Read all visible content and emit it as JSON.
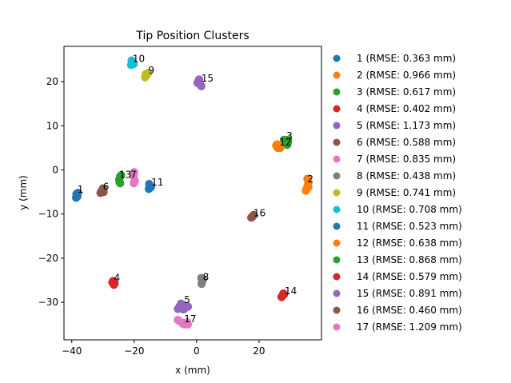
{
  "chart_data": {
    "type": "scatter",
    "title": "Tip Position Clusters",
    "xlabel": "x (mm)",
    "ylabel": "y (mm)",
    "xlim": [
      -42.5,
      40
    ],
    "ylim": [
      -38.5,
      28
    ],
    "xticks": [
      -40,
      -20,
      0,
      20
    ],
    "yticks": [
      -30,
      -20,
      -10,
      0,
      10,
      20
    ],
    "grid": false,
    "legend_position": "right",
    "series": [
      {
        "label": "1",
        "legend": "1 (RMSE: 0.363 mm)",
        "color": "#1f77b4",
        "label_at": [
          -38.2,
          -5.2
        ],
        "points": [
          [
            -38.5,
            -5.5
          ],
          [
            -38.2,
            -6.0
          ],
          [
            -38.0,
            -5.2
          ],
          [
            -38.6,
            -6.3
          ],
          [
            -38.3,
            -5.8
          ]
        ]
      },
      {
        "label": "2",
        "legend": "2 (RMSE: 0.966 mm)",
        "color": "#ff7f0e",
        "label_at": [
          35.5,
          -2.8
        ],
        "points": [
          [
            35.5,
            -2.0
          ],
          [
            35.8,
            -2.8
          ],
          [
            35.6,
            -3.5
          ],
          [
            35.3,
            -4.2
          ],
          [
            35.0,
            -4.7
          ],
          [
            35.8,
            -3.9
          ]
        ]
      },
      {
        "label": "3",
        "legend": "3 (RMSE: 0.617 mm)",
        "color": "#2ca02c",
        "label_at": [
          28.8,
          7.0
        ],
        "points": [
          [
            28.5,
            6.5
          ],
          [
            29.2,
            6.2
          ],
          [
            29.0,
            5.7
          ],
          [
            28.0,
            6.8
          ],
          [
            29.3,
            6.8
          ]
        ]
      },
      {
        "label": "4",
        "legend": "4 (RMSE: 0.402 mm)",
        "color": "#d62728",
        "label_at": [
          -26.5,
          -25.2
        ],
        "points": [
          [
            -27.0,
            -25.5
          ],
          [
            -26.5,
            -26.0
          ],
          [
            -26.8,
            -25.2
          ],
          [
            -26.3,
            -25.7
          ]
        ]
      },
      {
        "label": "5",
        "legend": "5 (RMSE: 1.173 mm)",
        "color": "#9467bd",
        "label_at": [
          -4.0,
          -30.2
        ],
        "points": [
          [
            -5.5,
            -31.0
          ],
          [
            -4.5,
            -30.5
          ],
          [
            -3.5,
            -31.2
          ],
          [
            -5.0,
            -30.3
          ],
          [
            -6.0,
            -31.5
          ],
          [
            -2.8,
            -31.0
          ],
          [
            -4.2,
            -31.6
          ]
        ]
      },
      {
        "label": "6",
        "legend": "6 (RMSE: 0.588 mm)",
        "color": "#8c564b",
        "label_at": [
          -30.0,
          -4.5
        ],
        "points": [
          [
            -30.5,
            -4.8
          ],
          [
            -30.0,
            -4.2
          ],
          [
            -30.8,
            -5.2
          ],
          [
            -29.8,
            -5.0
          ]
        ]
      },
      {
        "label": "7",
        "legend": "7 (RMSE: 0.835 mm)",
        "color": "#e377c2",
        "label_at": [
          -21.2,
          -1.8
        ],
        "points": [
          [
            -20.0,
            -0.5
          ],
          [
            -20.2,
            -1.5
          ],
          [
            -19.8,
            -2.5
          ],
          [
            -20.1,
            -3.0
          ],
          [
            -20.3,
            -1.0
          ]
        ]
      },
      {
        "label": "8",
        "legend": "8 (RMSE: 0.438 mm)",
        "color": "#7f7f7f",
        "label_at": [
          2.0,
          -25.0
        ],
        "points": [
          [
            1.5,
            -24.5
          ],
          [
            1.8,
            -25.2
          ],
          [
            1.6,
            -25.8
          ],
          [
            2.0,
            -24.8
          ]
        ]
      },
      {
        "label": "9",
        "legend": "9 (RMSE: 0.741 mm)",
        "color": "#bcbd22",
        "label_at": [
          -15.5,
          21.8
        ],
        "points": [
          [
            -16.5,
            21.0
          ],
          [
            -16.0,
            21.5
          ],
          [
            -15.5,
            22.0
          ],
          [
            -16.3,
            21.7
          ]
        ]
      },
      {
        "label": "10",
        "legend": "10 (RMSE: 0.708 mm)",
        "color": "#17becf",
        "label_at": [
          -20.5,
          24.5
        ],
        "points": [
          [
            -21.0,
            23.8
          ],
          [
            -20.5,
            24.3
          ],
          [
            -20.8,
            24.8
          ],
          [
            -20.2,
            24.0
          ]
        ]
      },
      {
        "label": "11",
        "legend": "11 (RMSE: 0.523 mm)",
        "color": "#1f77b4",
        "label_at": [
          -14.5,
          -3.5
        ],
        "points": [
          [
            -15.0,
            -3.5
          ],
          [
            -14.8,
            -4.0
          ],
          [
            -15.2,
            -3.2
          ],
          [
            -14.6,
            -3.8
          ],
          [
            -15.3,
            -4.3
          ]
        ]
      },
      {
        "label": "12",
        "legend": "12 (RMSE: 0.638 mm)",
        "color": "#ff7f0e",
        "label_at": [
          26.5,
          5.5
        ],
        "points": [
          [
            25.5,
            5.5
          ],
          [
            26.0,
            5.0
          ],
          [
            26.5,
            5.5
          ],
          [
            26.8,
            5.0
          ],
          [
            25.8,
            5.8
          ]
        ]
      },
      {
        "label": "13",
        "legend": "13 (RMSE: 0.868 mm)",
        "color": "#2ca02c",
        "label_at": [
          -24.8,
          -1.8
        ],
        "points": [
          [
            -24.5,
            -1.5
          ],
          [
            -24.8,
            -2.2
          ],
          [
            -24.5,
            -3.0
          ],
          [
            -24.2,
            -1.2
          ],
          [
            -24.7,
            -2.8
          ]
        ]
      },
      {
        "label": "14",
        "legend": "14 (RMSE: 0.579 mm)",
        "color": "#d62728",
        "label_at": [
          28.2,
          -28.2
        ],
        "points": [
          [
            27.5,
            -28.5
          ],
          [
            28.0,
            -28.2
          ],
          [
            27.2,
            -28.8
          ],
          [
            27.8,
            -28.0
          ]
        ]
      },
      {
        "label": "15",
        "legend": "15 (RMSE: 0.891 mm)",
        "color": "#9467bd",
        "label_at": [
          1.5,
          20.0
        ],
        "points": [
          [
            0.5,
            20.0
          ],
          [
            1.0,
            19.5
          ],
          [
            1.5,
            19.0
          ],
          [
            0.8,
            20.5
          ],
          [
            0.3,
            19.7
          ]
        ]
      },
      {
        "label": "16",
        "legend": "16 (RMSE: 0.460 mm)",
        "color": "#8c564b",
        "label_at": [
          18.2,
          -10.5
        ],
        "points": [
          [
            18.0,
            -10.5
          ],
          [
            17.5,
            -10.8
          ],
          [
            18.3,
            -10.2
          ],
          [
            17.8,
            -10.6
          ]
        ]
      },
      {
        "label": "17",
        "legend": "17 (RMSE: 1.209 mm)",
        "color": "#e377c2",
        "label_at": [
          -4.0,
          -34.5
        ],
        "points": [
          [
            -6.0,
            -34.0
          ],
          [
            -5.0,
            -34.5
          ],
          [
            -4.0,
            -35.0
          ],
          [
            -3.0,
            -34.5
          ],
          [
            -4.5,
            -34.8
          ],
          [
            -2.8,
            -35.0
          ]
        ]
      }
    ]
  }
}
